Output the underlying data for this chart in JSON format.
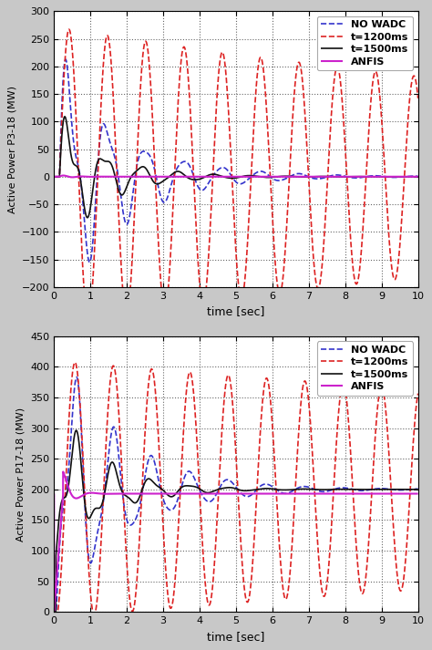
{
  "fig_bg": "#c8c8c8",
  "plot_bg": "#ffffff",
  "plot1": {
    "ylabel": "Active Power P3-18 (MW)",
    "xlabel": "time [sec]",
    "xlim": [
      0,
      10
    ],
    "ylim": [
      -200,
      300
    ],
    "yticks": [
      -200,
      -150,
      -100,
      -50,
      0,
      50,
      100,
      150,
      200,
      250,
      300
    ],
    "xticks": [
      0,
      1,
      2,
      3,
      4,
      5,
      6,
      7,
      8,
      9,
      10
    ]
  },
  "plot2": {
    "ylabel": "Active Power P17-18 (MW)",
    "xlabel": "time [sec]",
    "xlim": [
      0,
      10
    ],
    "ylim": [
      0,
      450
    ],
    "yticks": [
      0,
      50,
      100,
      150,
      200,
      250,
      300,
      350,
      400,
      450
    ],
    "xticks": [
      0,
      1,
      2,
      3,
      4,
      5,
      6,
      7,
      8,
      9,
      10
    ]
  },
  "legend": [
    "NO WADC",
    "t=1200ms",
    "t=1500ms",
    "ANFIS"
  ],
  "colors": {
    "no_wadc": "#3333cc",
    "t1200": "#dd2222",
    "t1500": "#111111",
    "anfis": "#cc22cc"
  },
  "lw": 1.2,
  "ylabel_fontsize": 8,
  "xlabel_fontsize": 9,
  "tick_fontsize": 8,
  "legend_fontsize": 8
}
